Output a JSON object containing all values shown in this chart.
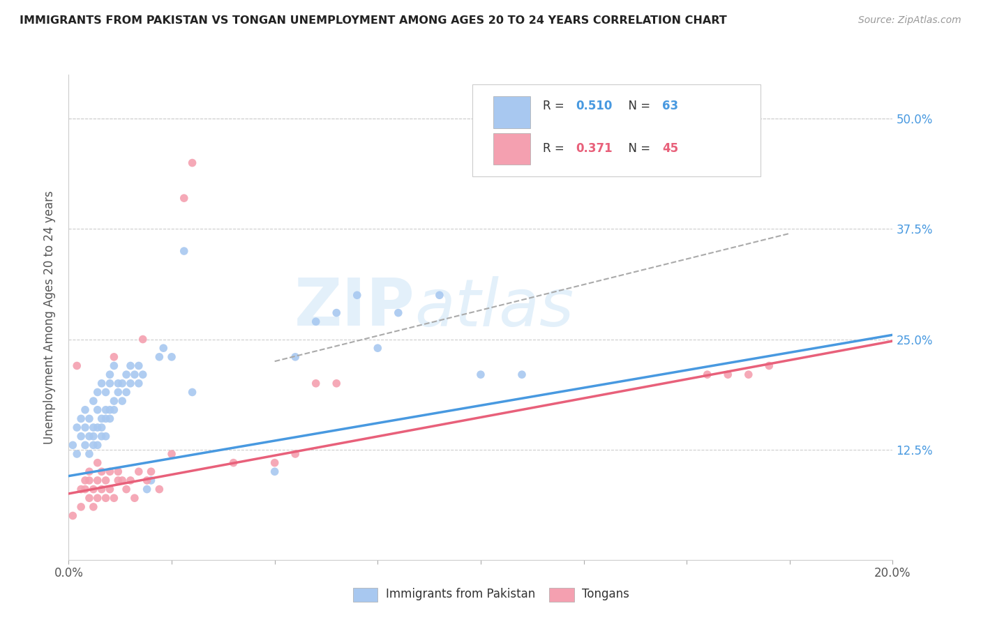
{
  "title": "IMMIGRANTS FROM PAKISTAN VS TONGAN UNEMPLOYMENT AMONG AGES 20 TO 24 YEARS CORRELATION CHART",
  "source": "Source: ZipAtlas.com",
  "ylabel": "Unemployment Among Ages 20 to 24 years",
  "yaxis_labels": [
    "12.5%",
    "25.0%",
    "37.5%",
    "50.0%"
  ],
  "yaxis_values": [
    0.125,
    0.25,
    0.375,
    0.5
  ],
  "xlim": [
    0.0,
    0.2
  ],
  "ylim": [
    0.0,
    0.55
  ],
  "legend_R_pakistan": "0.510",
  "legend_N_pakistan": "63",
  "legend_R_tongan": "0.371",
  "legend_N_tongan": "45",
  "color_pakistan": "#A8C8F0",
  "color_tongan": "#F4A0B0",
  "color_pakistan_line": "#4899E0",
  "color_tongan_line": "#E8607A",
  "color_dashed": "#AAAAAA",
  "pakistan_scatter_x": [
    0.001,
    0.002,
    0.002,
    0.003,
    0.003,
    0.004,
    0.004,
    0.004,
    0.005,
    0.005,
    0.005,
    0.006,
    0.006,
    0.006,
    0.006,
    0.007,
    0.007,
    0.007,
    0.007,
    0.008,
    0.008,
    0.008,
    0.008,
    0.009,
    0.009,
    0.009,
    0.009,
    0.01,
    0.01,
    0.01,
    0.01,
    0.011,
    0.011,
    0.011,
    0.012,
    0.012,
    0.013,
    0.013,
    0.014,
    0.014,
    0.015,
    0.015,
    0.016,
    0.017,
    0.017,
    0.018,
    0.019,
    0.02,
    0.022,
    0.023,
    0.025,
    0.028,
    0.03,
    0.05,
    0.055,
    0.06,
    0.065,
    0.07,
    0.075,
    0.08,
    0.09,
    0.1,
    0.11
  ],
  "pakistan_scatter_y": [
    0.13,
    0.15,
    0.12,
    0.14,
    0.16,
    0.13,
    0.15,
    0.17,
    0.12,
    0.14,
    0.16,
    0.13,
    0.18,
    0.14,
    0.15,
    0.17,
    0.13,
    0.15,
    0.19,
    0.14,
    0.16,
    0.2,
    0.15,
    0.17,
    0.14,
    0.19,
    0.16,
    0.21,
    0.17,
    0.2,
    0.16,
    0.22,
    0.18,
    0.17,
    0.2,
    0.19,
    0.18,
    0.2,
    0.19,
    0.21,
    0.2,
    0.22,
    0.21,
    0.2,
    0.22,
    0.21,
    0.08,
    0.09,
    0.23,
    0.24,
    0.23,
    0.35,
    0.19,
    0.1,
    0.23,
    0.27,
    0.28,
    0.3,
    0.24,
    0.28,
    0.3,
    0.21,
    0.21
  ],
  "tongan_scatter_x": [
    0.001,
    0.002,
    0.003,
    0.003,
    0.004,
    0.004,
    0.005,
    0.005,
    0.005,
    0.006,
    0.006,
    0.007,
    0.007,
    0.007,
    0.008,
    0.008,
    0.009,
    0.009,
    0.01,
    0.01,
    0.011,
    0.011,
    0.012,
    0.012,
    0.013,
    0.014,
    0.015,
    0.016,
    0.017,
    0.018,
    0.019,
    0.02,
    0.022,
    0.025,
    0.028,
    0.03,
    0.04,
    0.05,
    0.055,
    0.06,
    0.065,
    0.155,
    0.16,
    0.165,
    0.17
  ],
  "tongan_scatter_y": [
    0.05,
    0.22,
    0.08,
    0.06,
    0.08,
    0.09,
    0.07,
    0.09,
    0.1,
    0.06,
    0.08,
    0.07,
    0.09,
    0.11,
    0.08,
    0.1,
    0.09,
    0.07,
    0.08,
    0.1,
    0.07,
    0.23,
    0.09,
    0.1,
    0.09,
    0.08,
    0.09,
    0.07,
    0.1,
    0.25,
    0.09,
    0.1,
    0.08,
    0.12,
    0.41,
    0.45,
    0.11,
    0.11,
    0.12,
    0.2,
    0.2,
    0.21,
    0.21,
    0.21,
    0.22
  ],
  "pakistan_line_x": [
    0.0,
    0.2
  ],
  "pakistan_line_y": [
    0.095,
    0.255
  ],
  "tongan_line_x": [
    0.0,
    0.2
  ],
  "tongan_line_y": [
    0.075,
    0.248
  ],
  "dashed_line_x": [
    0.05,
    0.175
  ],
  "dashed_line_y": [
    0.225,
    0.37
  ],
  "legend_labels": [
    "Immigrants from Pakistan",
    "Tongans"
  ],
  "background_color": "#FFFFFF",
  "grid_color": "#CCCCCC"
}
